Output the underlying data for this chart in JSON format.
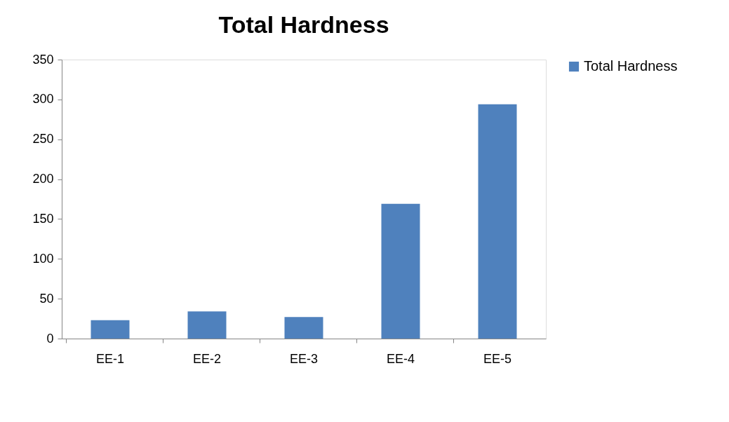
{
  "chart_data": {
    "type": "bar",
    "title": "Total Hardness",
    "categories": [
      "EE-1",
      "EE-2",
      "EE-3",
      "EE-4",
      "EE-5"
    ],
    "series": [
      {
        "name": "Total Hardness",
        "color": "#4f81bd",
        "values": [
          23,
          34,
          27,
          169,
          294
        ]
      }
    ],
    "ylim": [
      0,
      350
    ],
    "yticks": [
      0,
      50,
      100,
      150,
      200,
      250,
      300,
      350
    ],
    "grid": false,
    "legend": "right"
  }
}
